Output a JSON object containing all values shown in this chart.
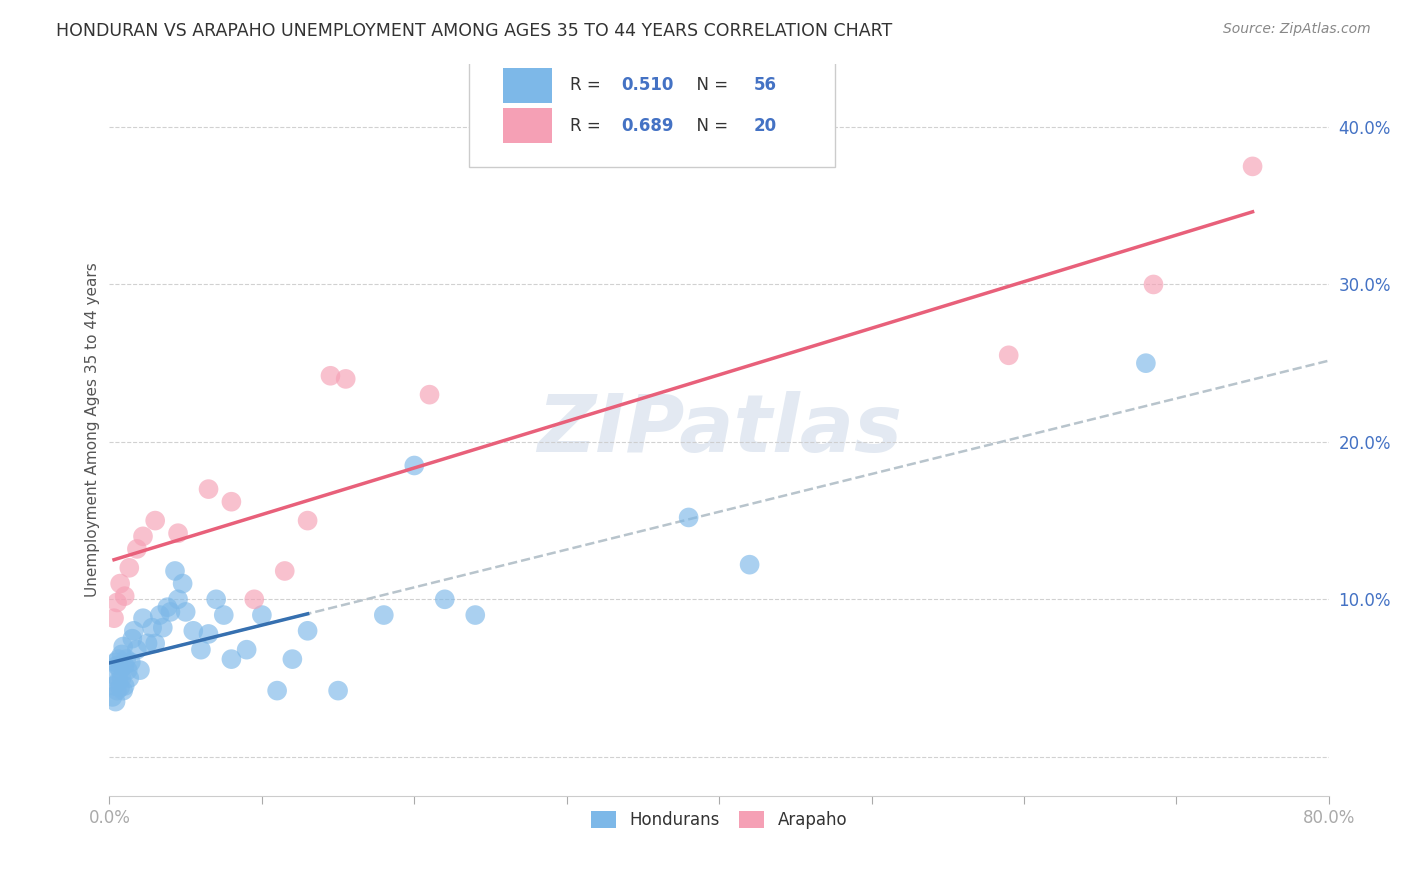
{
  "title": "HONDURAN VS ARAPAHO UNEMPLOYMENT AMONG AGES 35 TO 44 YEARS CORRELATION CHART",
  "source": "Source: ZipAtlas.com",
  "ylabel": "Unemployment Among Ages 35 to 44 years",
  "xlim": [
    0.0,
    0.8
  ],
  "ylim": [
    -0.025,
    0.44
  ],
  "xticks_major": [
    0.0,
    0.1,
    0.2,
    0.3,
    0.4,
    0.5,
    0.6,
    0.7,
    0.8
  ],
  "xtick_labels_show": {
    "0.0": "0.0%",
    "0.8": "80.0%"
  },
  "yticks": [
    0.0,
    0.1,
    0.2,
    0.3,
    0.4
  ],
  "yticklabels": [
    "",
    "10.0%",
    "20.0%",
    "30.0%",
    "40.0%"
  ],
  "honduran_R": 0.51,
  "honduran_N": 56,
  "arapaho_R": 0.689,
  "arapaho_N": 20,
  "honduran_color": "#7db8e8",
  "arapaho_color": "#f5a0b5",
  "honduran_line_color": "#3670b0",
  "arapaho_line_color": "#e8607a",
  "dash_line_color": "#b8c4cc",
  "watermark": "ZIPatlas",
  "background_color": "#ffffff",
  "hon_x": [
    0.002,
    0.003,
    0.003,
    0.004,
    0.004,
    0.005,
    0.005,
    0.006,
    0.006,
    0.007,
    0.007,
    0.008,
    0.008,
    0.009,
    0.009,
    0.01,
    0.01,
    0.011,
    0.012,
    0.013,
    0.014,
    0.015,
    0.016,
    0.018,
    0.02,
    0.022,
    0.025,
    0.028,
    0.03,
    0.033,
    0.035,
    0.038,
    0.04,
    0.043,
    0.045,
    0.048,
    0.05,
    0.055,
    0.06,
    0.065,
    0.07,
    0.075,
    0.08,
    0.09,
    0.1,
    0.11,
    0.12,
    0.13,
    0.15,
    0.18,
    0.2,
    0.22,
    0.24,
    0.38,
    0.42,
    0.68
  ],
  "hon_y": [
    0.038,
    0.045,
    0.052,
    0.035,
    0.06,
    0.042,
    0.058,
    0.048,
    0.062,
    0.044,
    0.055,
    0.05,
    0.065,
    0.042,
    0.07,
    0.045,
    0.058,
    0.062,
    0.055,
    0.05,
    0.06,
    0.075,
    0.08,
    0.068,
    0.055,
    0.088,
    0.072,
    0.082,
    0.072,
    0.09,
    0.082,
    0.095,
    0.092,
    0.118,
    0.1,
    0.11,
    0.092,
    0.08,
    0.068,
    0.078,
    0.1,
    0.09,
    0.062,
    0.068,
    0.09,
    0.042,
    0.062,
    0.08,
    0.042,
    0.09,
    0.185,
    0.1,
    0.09,
    0.152,
    0.122,
    0.25
  ],
  "ara_x": [
    0.003,
    0.005,
    0.007,
    0.01,
    0.013,
    0.018,
    0.022,
    0.03,
    0.045,
    0.065,
    0.08,
    0.095,
    0.115,
    0.13,
    0.145,
    0.155,
    0.21,
    0.59,
    0.685,
    0.75
  ],
  "ara_y": [
    0.088,
    0.098,
    0.11,
    0.102,
    0.12,
    0.132,
    0.14,
    0.15,
    0.142,
    0.17,
    0.162,
    0.1,
    0.118,
    0.15,
    0.242,
    0.24,
    0.23,
    0.255,
    0.3,
    0.375
  ],
  "hon_line_x": [
    0.002,
    0.13
  ],
  "hon_line_intercept": 0.038,
  "hon_line_slope": 0.22,
  "ara_line_intercept": 0.118,
  "ara_line_slope": 0.265,
  "dash_line_intercept": 0.04,
  "dash_line_slope": 0.26
}
